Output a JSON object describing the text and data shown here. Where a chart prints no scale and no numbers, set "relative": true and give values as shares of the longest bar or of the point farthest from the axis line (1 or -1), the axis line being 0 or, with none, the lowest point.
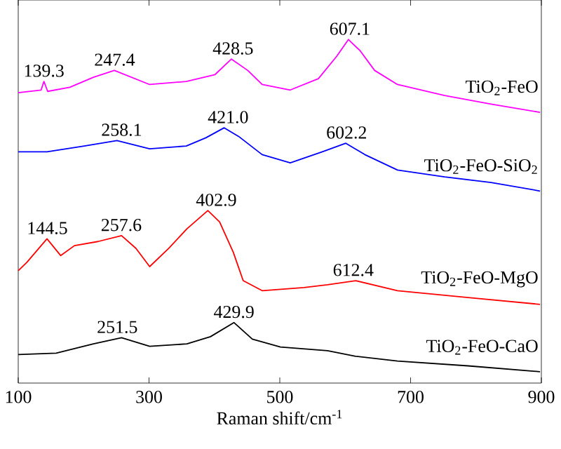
{
  "chart_data": {
    "type": "line",
    "relative": true,
    "xlabel": "Raman shift/cm$^{-1}$",
    "xlim": [
      100,
      900
    ],
    "xticks": [
      100,
      300,
      500,
      700,
      900
    ],
    "tick_labels": "x",
    "series": [
      {
        "name": "TiO$_{2}$-FeO",
        "color": "#ff00ff",
        "x": [
          100,
          135,
          139.3,
          145,
          179,
          215,
          247,
          301,
          357,
          401,
          426,
          451,
          473,
          516,
          559,
          587,
          605,
          623,
          645,
          680,
          752,
          823,
          898
        ],
        "values": [
          0.845,
          0.853,
          0.878,
          0.849,
          0.861,
          0.89,
          0.91,
          0.869,
          0.878,
          0.898,
          0.943,
          0.91,
          0.869,
          0.853,
          0.886,
          0.951,
          1.0,
          0.967,
          0.91,
          0.869,
          0.837,
          0.812,
          0.788
        ]
      },
      {
        "name": "TiO$_{2}$-FeO-SiO$_{2}$",
        "color": "#0000ff",
        "x": [
          100,
          144,
          201,
          251,
          301,
          357,
          387,
          415,
          437,
          473,
          516,
          565,
          601,
          630,
          680,
          752,
          823,
          898
        ],
        "values": [
          0.673,
          0.673,
          0.69,
          0.706,
          0.682,
          0.69,
          0.714,
          0.743,
          0.718,
          0.665,
          0.641,
          0.673,
          0.698,
          0.665,
          0.62,
          0.6,
          0.584,
          0.559
        ]
      },
      {
        "name": "TiO$_{2}$-FeO-MgO",
        "color": "#ff0000",
        "x": [
          100,
          113,
          144,
          165,
          186,
          222,
          258,
          280,
          301,
          330,
          358,
          390,
          408,
          429,
          444,
          473,
          537,
          573,
          616,
          680,
          788,
          898
        ],
        "values": [
          0.327,
          0.351,
          0.42,
          0.371,
          0.4,
          0.412,
          0.429,
          0.392,
          0.339,
          0.392,
          0.449,
          0.502,
          0.469,
          0.38,
          0.298,
          0.269,
          0.278,
          0.286,
          0.298,
          0.269,
          0.249,
          0.229
        ]
      },
      {
        "name": "TiO$_{2}$-FeO-CaO",
        "color": "#000000",
        "x": [
          100,
          158,
          215,
          258,
          301,
          358,
          394,
          430,
          458,
          501,
          573,
          616,
          680,
          788,
          898
        ],
        "values": [
          0.083,
          0.087,
          0.114,
          0.132,
          0.107,
          0.114,
          0.135,
          0.176,
          0.128,
          0.105,
          0.094,
          0.078,
          0.064,
          0.05,
          0.033
        ]
      }
    ],
    "annotations": [
      {
        "text": "139.3",
        "x": 139.3,
        "y": 0.878
      },
      {
        "text": "247.4",
        "x": 247.4,
        "y": 0.91
      },
      {
        "text": "428.5",
        "x": 428.5,
        "y": 0.943
      },
      {
        "text": "607.1",
        "x": 607.1,
        "y": 1.0
      },
      {
        "text": "258.1",
        "x": 258.1,
        "y": 0.706
      },
      {
        "text": "421.0",
        "x": 421.0,
        "y": 0.743
      },
      {
        "text": "602.2",
        "x": 602.2,
        "y": 0.698
      },
      {
        "text": "144.5",
        "x": 144.5,
        "y": 0.42
      },
      {
        "text": "257.6",
        "x": 257.6,
        "y": 0.429
      },
      {
        "text": "402.9",
        "x": 402.9,
        "y": 0.502
      },
      {
        "text": "612.4",
        "x": 612.4,
        "y": 0.298
      },
      {
        "text": "251.5",
        "x": 251.5,
        "y": 0.132
      },
      {
        "text": "429.9",
        "x": 429.9,
        "y": 0.176
      }
    ]
  }
}
